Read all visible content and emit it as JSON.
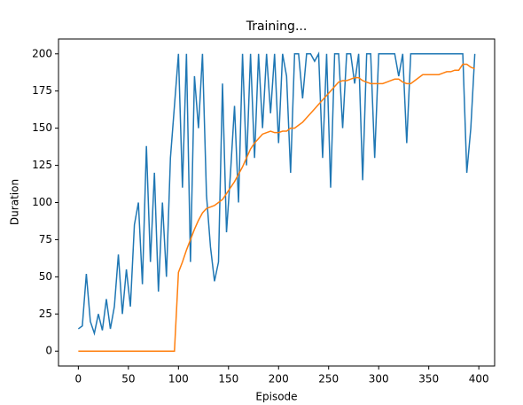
{
  "chart_data": {
    "type": "line",
    "title": "Training...",
    "x_label": "Episode",
    "y_label": "Duration",
    "x": [
      0,
      4,
      8,
      12,
      16,
      20,
      24,
      28,
      32,
      36,
      40,
      44,
      48,
      52,
      56,
      60,
      64,
      68,
      72,
      76,
      80,
      84,
      88,
      92,
      96,
      100,
      104,
      108,
      112,
      116,
      120,
      124,
      128,
      132,
      136,
      140,
      144,
      148,
      152,
      156,
      160,
      164,
      168,
      172,
      176,
      180,
      184,
      188,
      192,
      196,
      200,
      204,
      208,
      212,
      216,
      220,
      224,
      228,
      232,
      236,
      240,
      244,
      248,
      252,
      256,
      260,
      264,
      268,
      272,
      276,
      280,
      284,
      288,
      292,
      296,
      300,
      304,
      308,
      312,
      316,
      320,
      324,
      328,
      332,
      336,
      340,
      344,
      348,
      352,
      356,
      360,
      364,
      368,
      372,
      376,
      380,
      384,
      388,
      392,
      396
    ],
    "series": [
      {
        "color": "#1f77b4",
        "values": [
          15,
          17,
          52,
          20,
          12,
          25,
          14,
          35,
          15,
          30,
          65,
          25,
          55,
          30,
          85,
          100,
          45,
          138,
          60,
          120,
          40,
          100,
          50,
          130,
          165,
          200,
          110,
          200,
          60,
          185,
          150,
          200,
          105,
          70,
          47,
          60,
          180,
          80,
          120,
          165,
          100,
          200,
          125,
          200,
          130,
          200,
          150,
          200,
          160,
          200,
          140,
          200,
          185,
          120,
          200,
          200,
          170,
          200,
          200,
          195,
          200,
          130,
          200,
          110,
          200,
          200,
          150,
          200,
          200,
          180,
          200,
          115,
          200,
          200,
          130,
          200,
          200,
          200,
          200,
          200,
          185,
          200,
          140,
          200,
          200,
          200,
          200,
          200,
          200,
          200,
          200,
          200,
          200,
          200,
          200,
          200,
          200,
          120,
          150,
          200
        ]
      },
      {
        "color": "#ff7f0e",
        "values": [
          0,
          0,
          0,
          0,
          0,
          0,
          0,
          0,
          0,
          0,
          0,
          0,
          0,
          0,
          0,
          0,
          0,
          0,
          0,
          0,
          0,
          0,
          0,
          0,
          0,
          53,
          60,
          68,
          75,
          82,
          88,
          93,
          96,
          97,
          98,
          100,
          102,
          106,
          110,
          114,
          119,
          124,
          130,
          136,
          140,
          143,
          146,
          147,
          148,
          147,
          147,
          148,
          148,
          150,
          150,
          152,
          154,
          157,
          160,
          163,
          166,
          169,
          172,
          175,
          178,
          181,
          182,
          182,
          183,
          184,
          184,
          182,
          181,
          180,
          180,
          180,
          180,
          181,
          182,
          183,
          183,
          181,
          180,
          180,
          182,
          184,
          186,
          186,
          186,
          186,
          186,
          187,
          188,
          188,
          189,
          189,
          193,
          193,
          191,
          190
        ]
      }
    ],
    "xlim": [
      -19.8,
      415.8
    ],
    "ylim": [
      -10,
      210
    ],
    "xticks": [
      0,
      50,
      100,
      150,
      200,
      250,
      300,
      350,
      400
    ],
    "yticks": [
      0,
      25,
      50,
      75,
      100,
      125,
      150,
      175,
      200
    ]
  }
}
